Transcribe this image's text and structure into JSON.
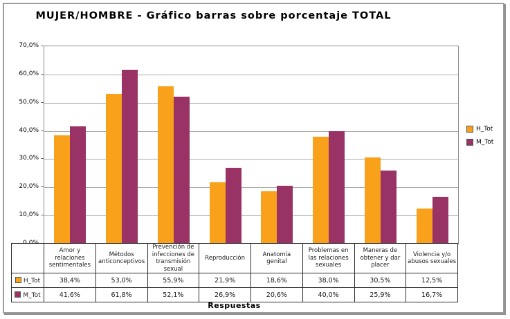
{
  "page": {
    "title": "MUJER/HOMBRE - Gráfico barras sobre porcentaje TOTAL"
  },
  "colors": {
    "h_tot": "#F9A11B",
    "m_tot": "#993366",
    "gridline": "#a8a8a8",
    "plot_border": "#8c8c8c",
    "table_border": "#2b2b2b"
  },
  "chart_data": {
    "type": "bar",
    "title": "MUJER/HOMBRE - Gráfico barras sobre porcentaje TOTAL",
    "xlabel": "Respuestas",
    "ylabel": "",
    "ylim": [
      0,
      70
    ],
    "ytick_step": 10,
    "ytick_labels_top_to_bottom": [
      "70,0%",
      "60,0%",
      "50,0%",
      "40,0%",
      "30,0%",
      "20,0%",
      "10,0%",
      "0,0%"
    ],
    "grid": true,
    "legend_position": "right",
    "categories": [
      "Amor y relaciones sentimentales",
      "Métodos anticonceptivos",
      "Prevención de infecciones de transmisión sexual",
      "Reproducción",
      "Anatomía genital",
      "Problemas en las relaciones sexuales",
      "Maneras de obtener y dar placer",
      "Violencia y/o abusos sexuales"
    ],
    "series": [
      {
        "name": "H_Tot",
        "color": "#F9A11B",
        "values": [
          38.4,
          53.0,
          55.9,
          21.9,
          18.6,
          38.0,
          30.5,
          12.5
        ],
        "labels": [
          "38,4%",
          "53,0%",
          "55,9%",
          "21,9%",
          "18,6%",
          "38,0%",
          "30,5%",
          "12,5%"
        ]
      },
      {
        "name": "M_Tot",
        "color": "#993366",
        "values": [
          41.6,
          61.8,
          52.1,
          26.9,
          20.6,
          40.0,
          25.9,
          16.7
        ],
        "labels": [
          "41,6%",
          "61,8%",
          "52,1%",
          "26,9%",
          "20,6%",
          "40,0%",
          "25,9%",
          "16,7%"
        ]
      }
    ]
  }
}
